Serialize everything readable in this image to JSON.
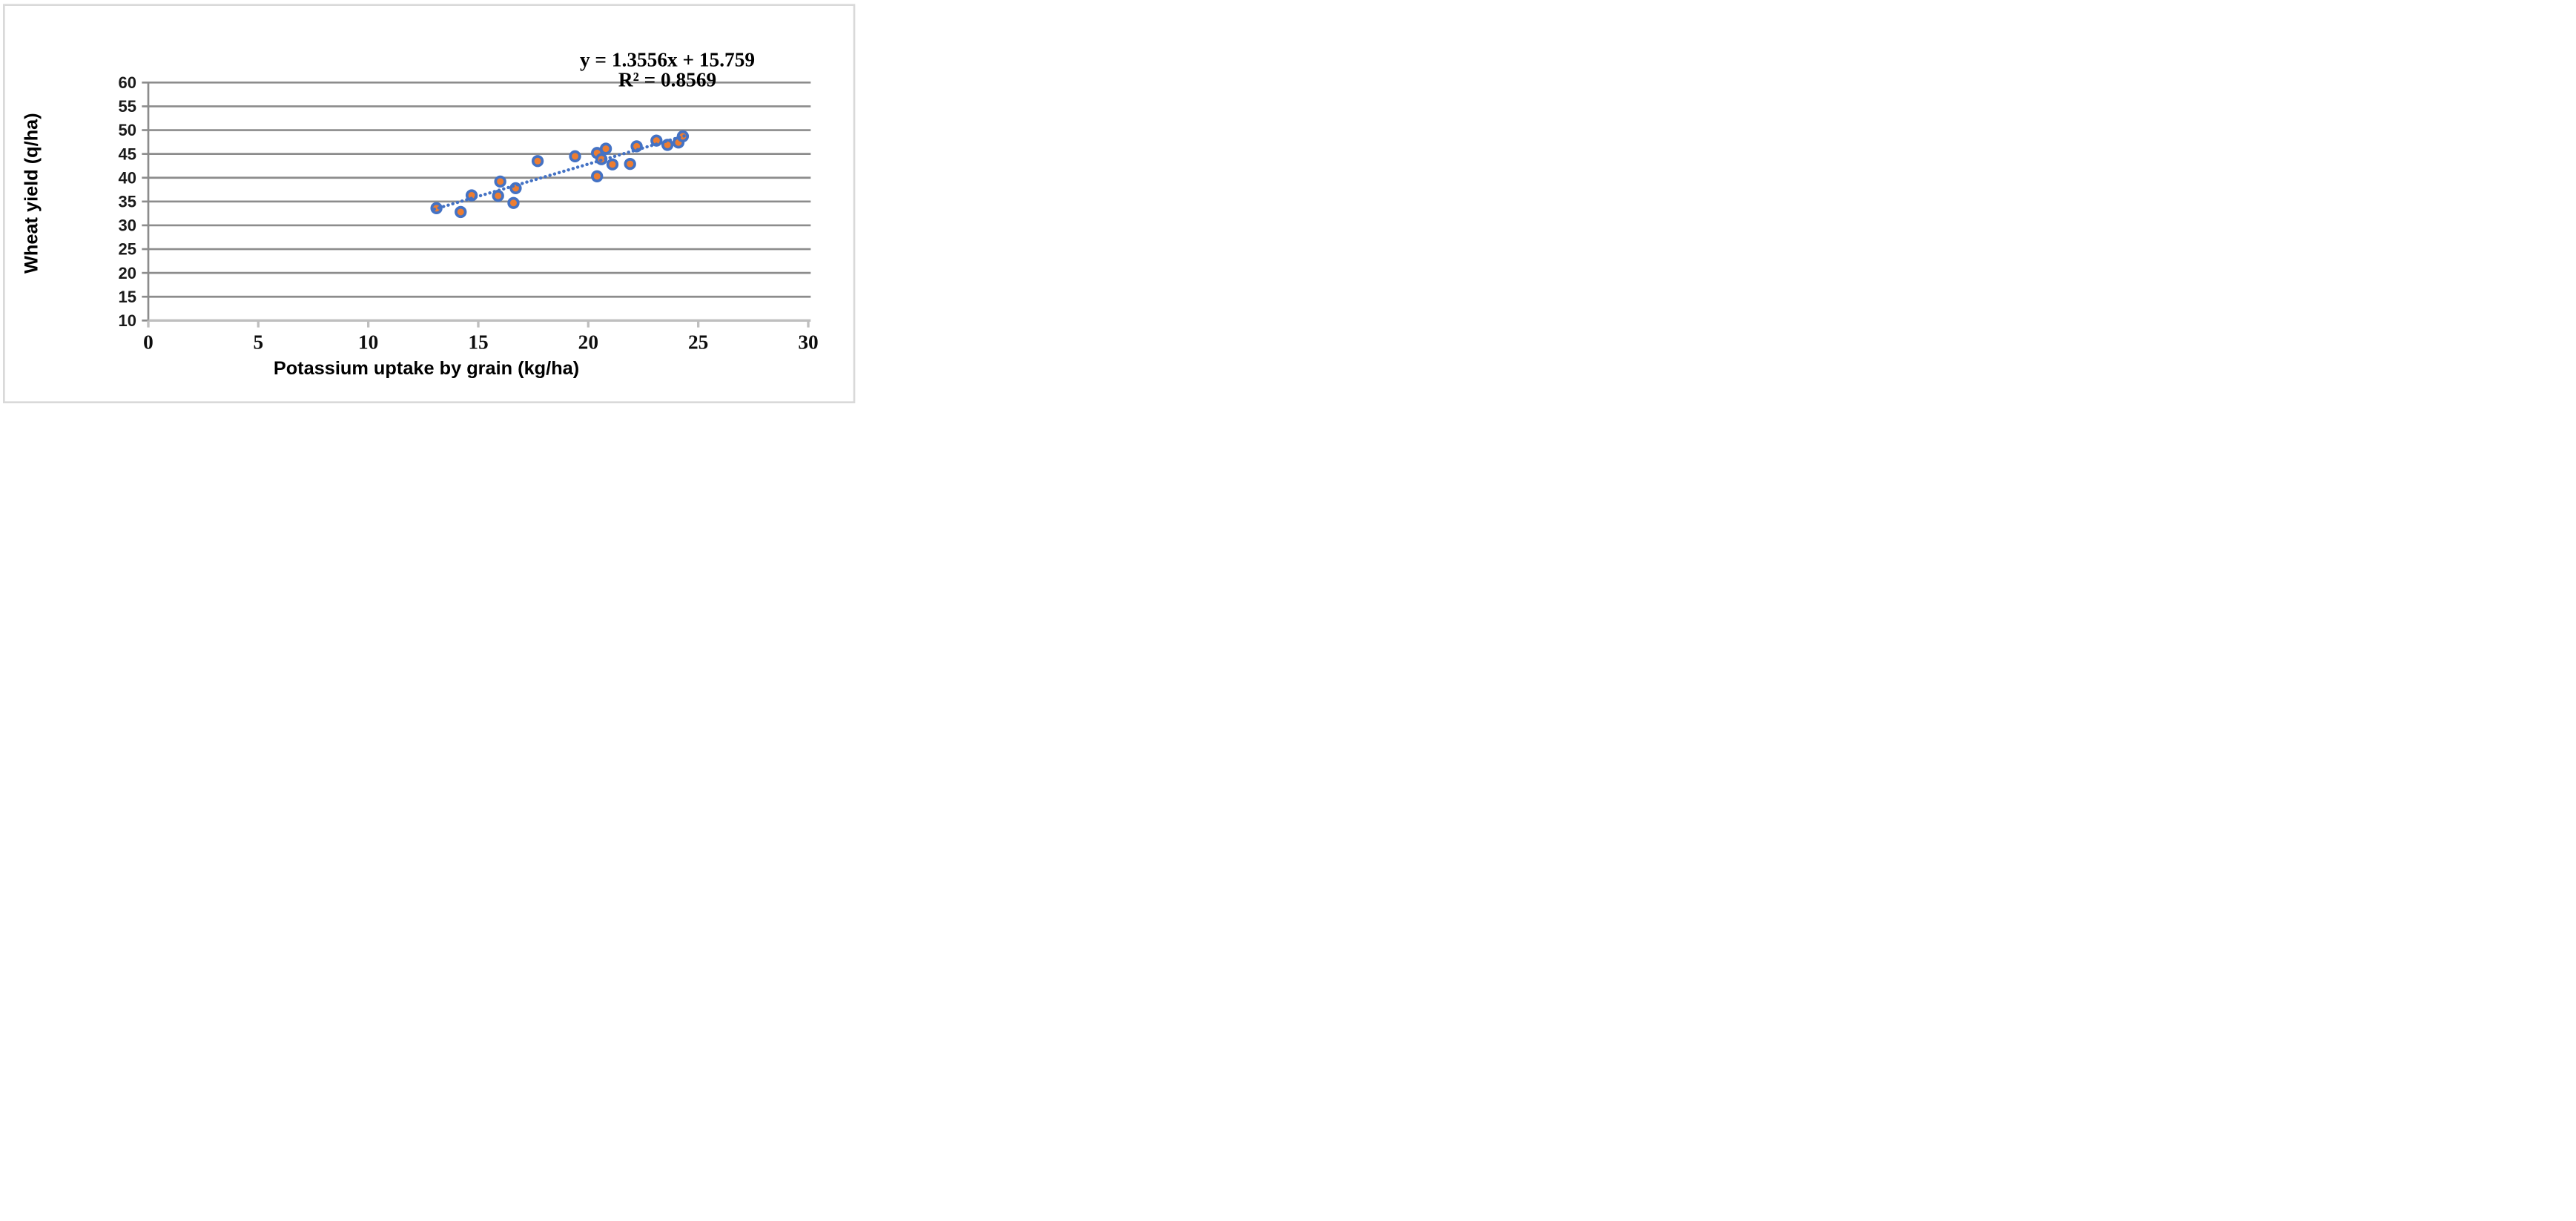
{
  "chart_data": {
    "type": "scatter",
    "title": "",
    "xlabel": "Potassium uptake by grain (kg/ha)",
    "ylabel": "Wheat yield (q/ha)",
    "xlim": [
      0,
      30
    ],
    "ylim": [
      10,
      60
    ],
    "x_ticks": [
      0,
      5,
      10,
      15,
      20,
      25,
      30
    ],
    "y_ticks": [
      10,
      15,
      20,
      25,
      30,
      35,
      40,
      45,
      50,
      55,
      60
    ],
    "grid": true,
    "legend_position": "none",
    "points": [
      [
        13.1,
        33.6
      ],
      [
        14.2,
        32.8
      ],
      [
        14.7,
        36.3
      ],
      [
        15.9,
        36.2
      ],
      [
        16.0,
        39.2
      ],
      [
        16.7,
        37.8
      ],
      [
        16.6,
        34.7
      ],
      [
        17.7,
        43.5
      ],
      [
        19.4,
        44.5
      ],
      [
        20.4,
        45.2
      ],
      [
        20.8,
        46.1
      ],
      [
        20.6,
        43.9
      ],
      [
        21.1,
        42.8
      ],
      [
        20.4,
        40.3
      ],
      [
        21.9,
        42.9
      ],
      [
        22.2,
        46.6
      ],
      [
        23.1,
        47.8
      ],
      [
        23.6,
        46.9
      ],
      [
        24.1,
        47.4
      ],
      [
        24.3,
        48.7
      ]
    ],
    "trendline": {
      "slope": 1.3556,
      "intercept": 15.759,
      "x_start": 13.0,
      "x_end": 24.45,
      "style": "dotted"
    },
    "annotation": {
      "equation": "y = 1.3556x + 15.759",
      "r_squared": "R² = 0.8569"
    }
  },
  "colors": {
    "marker_fill": "#ED7D31",
    "marker_stroke": "#4472C4",
    "trendline": "#4472C4",
    "gridline": "#8C8C8C",
    "y_axis": "#8C8C8C",
    "x_axis": "#BFBFBF",
    "frame": "#D9D9D9",
    "background": "#FFFFFF"
  }
}
